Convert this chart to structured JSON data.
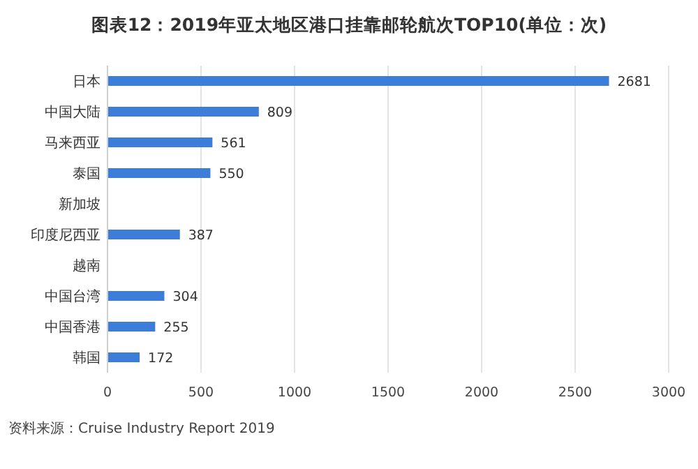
{
  "chart_data": {
    "type": "bar",
    "orientation": "horizontal",
    "title": "图表12：2019年亚太地区港口挂靠邮轮航次TOP10(单位：次)",
    "categories": [
      "日本",
      "中国大陆",
      "马来西亚",
      "泰国",
      "新加坡",
      "印度尼西亚",
      "越南",
      "中国台湾",
      "中国香港",
      "韩国"
    ],
    "values": [
      2681,
      809,
      561,
      550,
      null,
      387,
      null,
      304,
      255,
      172
    ],
    "color": "#3b7dd8",
    "data_labels": true,
    "grid": "x",
    "xlim": [
      0,
      3000
    ],
    "xticks": [
      0,
      500,
      1000,
      1500,
      2000,
      2500,
      3000
    ],
    "annotations": [
      "资料来源：Cruise Industry Report 2019"
    ]
  }
}
